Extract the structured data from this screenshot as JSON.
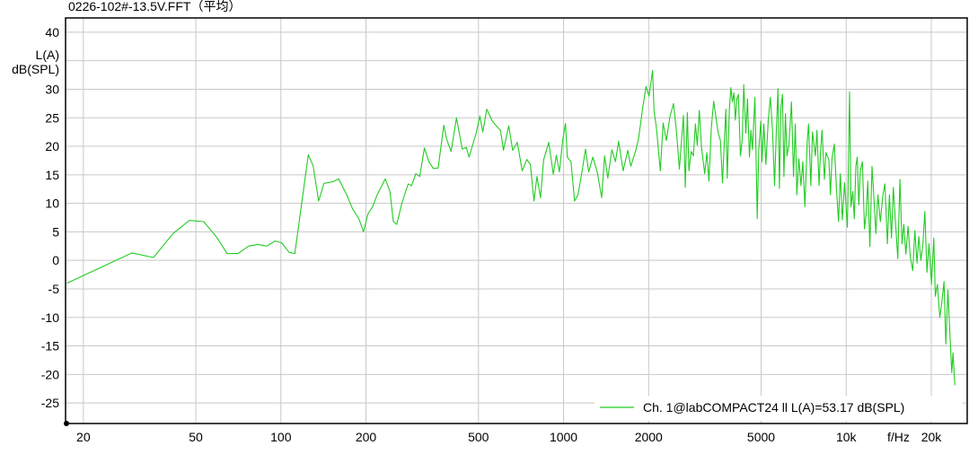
{
  "chart_data": {
    "type": "line",
    "title": "0226-102#-13.5V.FFT（平均）",
    "ylabel_lines": [
      "L(A)",
      "dB(SPL)"
    ],
    "xlabel": "f/Hz",
    "xscale": "log",
    "xlim": [
      17.3,
      26800
    ],
    "ylim": [
      -28.6,
      42.5
    ],
    "grid": true,
    "legend_placement": "bottom-right",
    "x_ticks": [
      {
        "value": 20,
        "label": "20"
      },
      {
        "value": 50,
        "label": "50"
      },
      {
        "value": 100,
        "label": "100"
      },
      {
        "value": 200,
        "label": "200"
      },
      {
        "value": 500,
        "label": "500"
      },
      {
        "value": 1000,
        "label": "1000"
      },
      {
        "value": 2000,
        "label": "2000"
      },
      {
        "value": 5000,
        "label": "5000"
      },
      {
        "value": 10000,
        "label": "10k"
      },
      {
        "value": 20000,
        "label": "20k"
      }
    ],
    "y_ticks": [
      {
        "value": 40,
        "label": "40"
      },
      {
        "value": 35,
        "label": ""
      },
      {
        "value": 30,
        "label": "30"
      },
      {
        "value": 25,
        "label": "25"
      },
      {
        "value": 20,
        "label": "20"
      },
      {
        "value": 15,
        "label": "15"
      },
      {
        "value": 10,
        "label": "10"
      },
      {
        "value": 5,
        "label": "5"
      },
      {
        "value": 0,
        "label": "0"
      },
      {
        "value": -5,
        "label": "-5"
      },
      {
        "value": -10,
        "label": "-10"
      },
      {
        "value": -15,
        "label": "-15"
      },
      {
        "value": -20,
        "label": "-20"
      },
      {
        "value": -25,
        "label": "-25"
      }
    ],
    "colors": {
      "series": "#22cc22",
      "grid": "#c8c8c8",
      "frame": "#000000"
    },
    "series": [
      {
        "name": "Ch. 1@labCOMPACT24 ll L(A)=53.17 dB(SPL)",
        "points": [
          [
            17.5,
            -4.0
          ],
          [
            29.7,
            1.3
          ],
          [
            35.4,
            0.5
          ],
          [
            41.5,
            4.7
          ],
          [
            47.4,
            7.0
          ],
          [
            53.3,
            6.8
          ],
          [
            59.2,
            4.1
          ],
          [
            64.5,
            1.2
          ],
          [
            70.5,
            1.2
          ],
          [
            76.8,
            2.5
          ],
          [
            82.9,
            2.8
          ],
          [
            89.1,
            2.5
          ],
          [
            95.3,
            3.4
          ],
          [
            100.5,
            3.1
          ],
          [
            107,
            1.4
          ],
          [
            112,
            1.2
          ],
          [
            125,
            18.5
          ],
          [
            130,
            16.6
          ],
          [
            136,
            10.4
          ],
          [
            142,
            13.5
          ],
          [
            153,
            13.8
          ],
          [
            160,
            14.3
          ],
          [
            171,
            11.5
          ],
          [
            179,
            9.1
          ],
          [
            189,
            7.2
          ],
          [
            196,
            5.0
          ],
          [
            203,
            8.1
          ],
          [
            211,
            9.4
          ],
          [
            219,
            11.5
          ],
          [
            234,
            14.3
          ],
          [
            243,
            12.1
          ],
          [
            250,
            6.8
          ],
          [
            257,
            6.3
          ],
          [
            268,
            10.1
          ],
          [
            282,
            13.4
          ],
          [
            290,
            13.1
          ],
          [
            300,
            15.2
          ],
          [
            310,
            14.7
          ],
          [
            322,
            19.7
          ],
          [
            334,
            17.3
          ],
          [
            346,
            16.1
          ],
          [
            360,
            16.2
          ],
          [
            377,
            23.7
          ],
          [
            386,
            21.2
          ],
          [
            400,
            19.1
          ],
          [
            418,
            25.0
          ],
          [
            438,
            19.5
          ],
          [
            453,
            19.8
          ],
          [
            463,
            18.1
          ],
          [
            490,
            22.2
          ],
          [
            506,
            25.3
          ],
          [
            518,
            22.5
          ],
          [
            535,
            26.5
          ],
          [
            560,
            24.4
          ],
          [
            580,
            23.5
          ],
          [
            598,
            22.8
          ],
          [
            613,
            19.3
          ],
          [
            640,
            23.6
          ],
          [
            661,
            19.3
          ],
          [
            686,
            20.7
          ],
          [
            714,
            15.7
          ],
          [
            741,
            17.7
          ],
          [
            763,
            16.8
          ],
          [
            786,
            10.4
          ],
          [
            805,
            14.7
          ],
          [
            829,
            11.0
          ],
          [
            850,
            17.6
          ],
          [
            887,
            20.7
          ],
          [
            920,
            15.1
          ],
          [
            943,
            18.4
          ],
          [
            967,
            15.5
          ],
          [
            993,
            21.1
          ],
          [
            1016,
            24.0
          ],
          [
            1031,
            18.1
          ],
          [
            1062,
            17.3
          ],
          [
            1094,
            10.4
          ],
          [
            1125,
            11.5
          ],
          [
            1158,
            15.1
          ],
          [
            1196,
            19.5
          ],
          [
            1227,
            15.5
          ],
          [
            1270,
            18.1
          ],
          [
            1315,
            15.5
          ],
          [
            1364,
            11.0
          ],
          [
            1397,
            18.3
          ],
          [
            1434,
            14.4
          ],
          [
            1482,
            19.4
          ],
          [
            1527,
            17.3
          ],
          [
            1566,
            20.9
          ],
          [
            1625,
            15.7
          ],
          [
            1687,
            19.3
          ],
          [
            1730,
            16.5
          ],
          [
            1796,
            19.1
          ],
          [
            1840,
            21.2
          ],
          [
            1909,
            27.0
          ],
          [
            1958,
            30.5
          ],
          [
            2006,
            28.8
          ],
          [
            2066,
            33.3
          ],
          [
            2090,
            26.2
          ],
          [
            2130,
            23.3
          ],
          [
            2200,
            15.7
          ],
          [
            2250,
            24.1
          ],
          [
            2310,
            21.0
          ],
          [
            2380,
            25.2
          ],
          [
            2450,
            27.5
          ],
          [
            2510,
            22.5
          ],
          [
            2570,
            16.0
          ],
          [
            2656,
            25.4
          ],
          [
            2696,
            12.8
          ],
          [
            2741,
            25.9
          ],
          [
            2776,
            15.7
          ],
          [
            2830,
            19.1
          ],
          [
            2880,
            18.3
          ],
          [
            2928,
            23.9
          ],
          [
            2972,
            20.2
          ],
          [
            3022,
            26.3
          ],
          [
            3076,
            19.9
          ],
          [
            3158,
            15.2
          ],
          [
            3214,
            18.9
          ],
          [
            3268,
            13.9
          ],
          [
            3334,
            23.3
          ],
          [
            3398,
            27.9
          ],
          [
            3458,
            25.2
          ],
          [
            3526,
            22.3
          ],
          [
            3588,
            21.0
          ],
          [
            3650,
            13.6
          ],
          [
            3750,
            26.5
          ],
          [
            3794,
            14.4
          ],
          [
            3862,
            26.5
          ],
          [
            3906,
            30.3
          ],
          [
            3956,
            27.8
          ],
          [
            4006,
            29.4
          ],
          [
            4052,
            24.6
          ],
          [
            4104,
            28.3
          ],
          [
            4154,
            29.1
          ],
          [
            4226,
            18.3
          ],
          [
            4288,
            21.2
          ],
          [
            4342,
            30.8
          ],
          [
            4416,
            22.3
          ],
          [
            4472,
            28.3
          ],
          [
            4546,
            18.1
          ],
          [
            4604,
            22.8
          ],
          [
            4658,
            19.4
          ],
          [
            4752,
            28.6
          ],
          [
            4846,
            7.3
          ],
          [
            4904,
            19.4
          ],
          [
            4990,
            24.4
          ],
          [
            5037,
            17.3
          ],
          [
            5111,
            23.9
          ],
          [
            5198,
            16.8
          ],
          [
            5302,
            24.6
          ],
          [
            5392,
            28.6
          ],
          [
            5488,
            22.8
          ],
          [
            5581,
            13.1
          ],
          [
            5664,
            23.3
          ],
          [
            5735,
            30.1
          ],
          [
            5803,
            12.6
          ],
          [
            5875,
            26.7
          ],
          [
            5949,
            29.1
          ],
          [
            6019,
            14.7
          ],
          [
            6095,
            25.7
          ],
          [
            6171,
            18.3
          ],
          [
            6276,
            20.4
          ],
          [
            6401,
            27.8
          ],
          [
            6511,
            14.7
          ],
          [
            6607,
            23.9
          ],
          [
            6690,
            11.5
          ],
          [
            6803,
            17.8
          ],
          [
            6919,
            13.1
          ],
          [
            7021,
            17.3
          ],
          [
            7145,
            9.4
          ],
          [
            7283,
            21.0
          ],
          [
            7357,
            23.9
          ],
          [
            7500,
            13.1
          ],
          [
            7595,
            22.5
          ],
          [
            7781,
            18.3
          ],
          [
            7879,
            22.8
          ],
          [
            8012,
            13.1
          ],
          [
            8113,
            19.1
          ],
          [
            8214,
            22.8
          ],
          [
            8372,
            14.2
          ],
          [
            8478,
            18.9
          ],
          [
            8685,
            17.6
          ],
          [
            8794,
            11.5
          ],
          [
            8905,
            17.8
          ],
          [
            9076,
            20.4
          ],
          [
            9238,
            12.6
          ],
          [
            9394,
            6.8
          ],
          [
            9533,
            15.2
          ],
          [
            9695,
            7.1
          ],
          [
            9867,
            13.6
          ],
          [
            10096,
            5.8
          ],
          [
            10275,
            29.5
          ],
          [
            10396,
            9.4
          ],
          [
            10550,
            12.1
          ],
          [
            10682,
            7.3
          ],
          [
            10816,
            16.5
          ],
          [
            10944,
            18.1
          ],
          [
            11081,
            9.7
          ],
          [
            11220,
            15.7
          ],
          [
            11411,
            17.3
          ],
          [
            11605,
            5.5
          ],
          [
            11777,
            8.4
          ],
          [
            11924,
            13.9
          ],
          [
            12127,
            2.4
          ],
          [
            12343,
            16.5
          ],
          [
            12525,
            11.3
          ],
          [
            12738,
            4.7
          ],
          [
            12955,
            11.5
          ],
          [
            13214,
            6.8
          ],
          [
            13478,
            11.5
          ],
          [
            13707,
            13.4
          ],
          [
            13981,
            2.9
          ],
          [
            14219,
            11.5
          ],
          [
            14461,
            3.9
          ],
          [
            14674,
            12.8
          ],
          [
            14935,
            6.8
          ],
          [
            15223,
            0.3
          ],
          [
            15493,
            14.2
          ],
          [
            15757,
            2.9
          ],
          [
            15989,
            6.3
          ],
          [
            16261,
            1.1
          ],
          [
            16550,
            6.0
          ],
          [
            16868,
            0.5
          ],
          [
            17204,
            -1.8
          ],
          [
            17497,
            5.2
          ],
          [
            17808,
            -0.5
          ],
          [
            18071,
            4.2
          ],
          [
            18378,
            0.0
          ],
          [
            18691,
            2.9
          ],
          [
            18968,
            8.6
          ],
          [
            19305,
            -2.1
          ],
          [
            19632,
            2.9
          ],
          [
            20026,
            -4.2
          ],
          [
            20410,
            3.9
          ],
          [
            20668,
            -6.3
          ],
          [
            21018,
            -4.2
          ],
          [
            21438,
            -10.0
          ],
          [
            21804,
            -7.3
          ],
          [
            22191,
            -3.7
          ],
          [
            22520,
            -14.7
          ],
          [
            22902,
            -5.2
          ],
          [
            23292,
            -13.1
          ],
          [
            23637,
            -19.7
          ],
          [
            23880,
            -16.2
          ],
          [
            24231,
            -21.9
          ]
        ]
      }
    ]
  }
}
